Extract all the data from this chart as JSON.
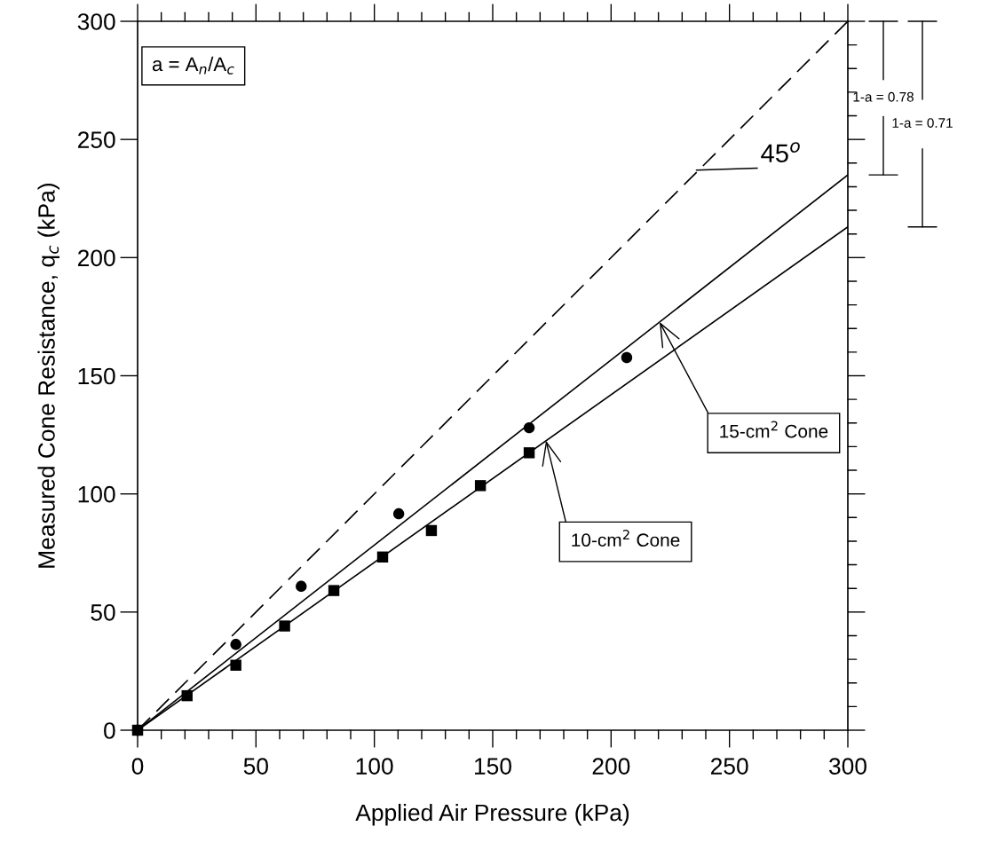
{
  "chart_data": {
    "type": "scatter",
    "xlabel": "Applied Air Pressure (kPa)",
    "ylabel": "Measured Cone Resistance, q$_{c}$ (kPa)",
    "xlim": [
      0,
      300
    ],
    "ylim": [
      0,
      300
    ],
    "xticks": [
      0,
      50,
      100,
      150,
      200,
      250,
      300
    ],
    "yticks": [
      0,
      50,
      100,
      150,
      200,
      250,
      300
    ],
    "grid": false,
    "legend": false,
    "series": [
      {
        "type": "line",
        "color": "#000000",
        "line_style": "dashed",
        "marker": "none",
        "x": [
          0,
          300
        ],
        "values": [
          0,
          300
        ]
      },
      {
        "type": "line",
        "color": "#000000",
        "line_style": "solid",
        "marker": "none",
        "x": [
          0,
          300
        ],
        "values": [
          0,
          235
        ]
      },
      {
        "type": "line",
        "color": "#000000",
        "line_style": "solid",
        "marker": "none",
        "x": [
          0,
          300
        ],
        "values": [
          0,
          213
        ]
      },
      {
        "color": "#000000",
        "marker": "circle",
        "x": [
          0,
          41.5,
          69.1,
          110.3,
          165.4,
          206.6
        ],
        "values": [
          0,
          36.3,
          60.9,
          91.6,
          128,
          157.7
        ]
      },
      {
        "color": "#000000",
        "marker": "square",
        "x": [
          0,
          20.9,
          41.5,
          62.1,
          82.9,
          103.5,
          124.1,
          144.8,
          165.4
        ],
        "values": [
          0,
          14.6,
          27.5,
          44.1,
          59.1,
          73.3,
          84.5,
          103.5,
          117.4
        ]
      }
    ],
    "annotations": [
      "a = A$_{n}$/A$_{c}$",
      {
        "text": "45$^{o}$",
        "x": 236,
        "y": 237
      },
      {
        "text": "15-cm$^{2}$ Cone",
        "x": 220.5,
        "y": 172.7
      },
      {
        "text": "10-cm$^{2}$ Cone",
        "x": 172.5,
        "y": 122.5
      },
      "1-a = 0.78",
      "1-a = 0.71"
    ]
  }
}
